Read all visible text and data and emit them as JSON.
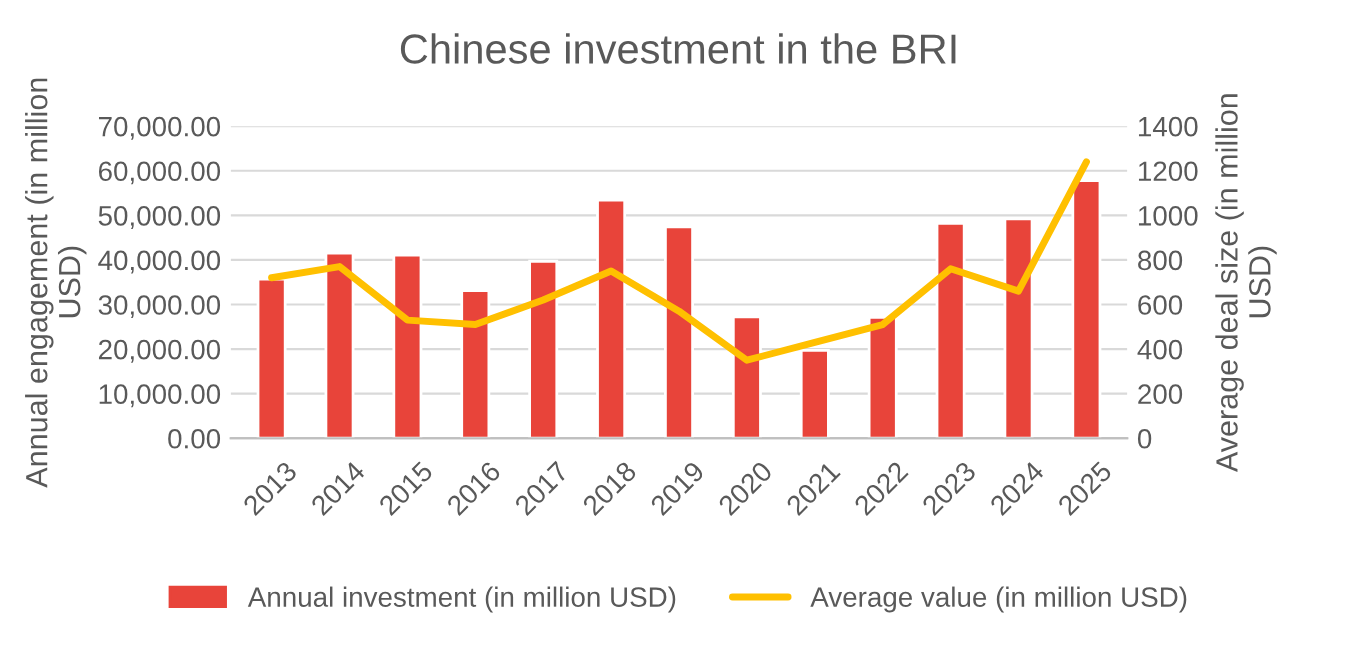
{
  "chart_data": {
    "type": "bar",
    "title": "Chinese investment in the BRI",
    "categories": [
      "2013",
      "2014",
      "2015",
      "2016",
      "2017",
      "2018",
      "2019",
      "2020",
      "2021",
      "2022",
      "2023",
      "2024",
      "2025"
    ],
    "series": [
      {
        "name": "Annual investment (in million USD)",
        "color": "#e8443a",
        "values": [
          35700,
          41500,
          41100,
          33100,
          39700,
          53400,
          47400,
          27200,
          19700,
          27100,
          48200,
          49200,
          57800
        ]
      },
      {
        "name": "Average value (in million USD)",
        "type": "line",
        "axis": "y2",
        "color": "#ffc000",
        "values": [
          720,
          770,
          530,
          510,
          620,
          750,
          570,
          350,
          430,
          510,
          760,
          660,
          1240
        ]
      }
    ],
    "ylabel": "Annual engagement (in million USD)",
    "y2label": "Average deal size (in million USD)",
    "ylim": [
      0,
      70000
    ],
    "yticks": [
      {
        "value": 0,
        "label": "0.00"
      },
      {
        "value": 10000,
        "label": "10,000.00"
      },
      {
        "value": 20000,
        "label": "20,000.00"
      },
      {
        "value": 30000,
        "label": "30,000.00"
      },
      {
        "value": 40000,
        "label": "40,000.00"
      },
      {
        "value": 50000,
        "label": "50,000.00"
      },
      {
        "value": 60000,
        "label": "60,000.00"
      },
      {
        "value": 70000,
        "label": "70,000.00"
      }
    ],
    "y2lim": [
      0,
      1400
    ],
    "y2ticks": [
      0,
      200,
      400,
      600,
      800,
      1000,
      1200,
      1400
    ],
    "grid": "y",
    "legend": "bottom"
  }
}
